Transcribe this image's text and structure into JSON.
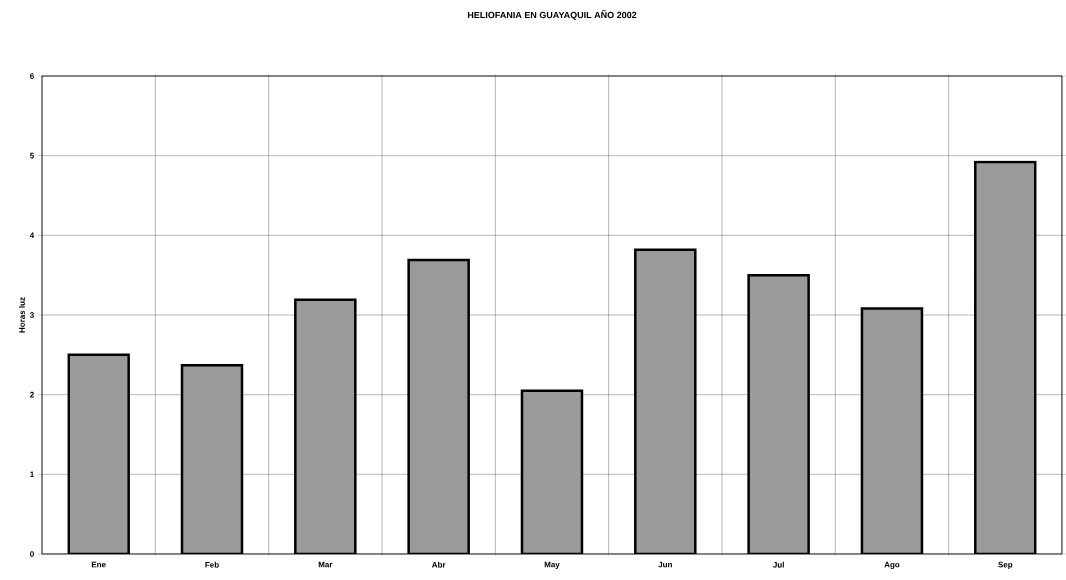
{
  "chart_data": {
    "type": "bar",
    "title": "HELIOFANIA EN GUAYAQUIL AÑO 2002",
    "ylabel": "Horas luz",
    "categories": [
      "Ene",
      "Feb",
      "Mar",
      "Abr",
      "May",
      "Jun",
      "Jul",
      "Ago",
      "Sep"
    ],
    "values": [
      2.5,
      2.37,
      3.19,
      3.69,
      2.05,
      3.82,
      3.5,
      3.08,
      4.92
    ],
    "color": "#9a9a9a",
    "ylim": [
      0,
      6
    ],
    "yticks": [
      0,
      1,
      2,
      3,
      4,
      5,
      6
    ],
    "grid": true
  }
}
